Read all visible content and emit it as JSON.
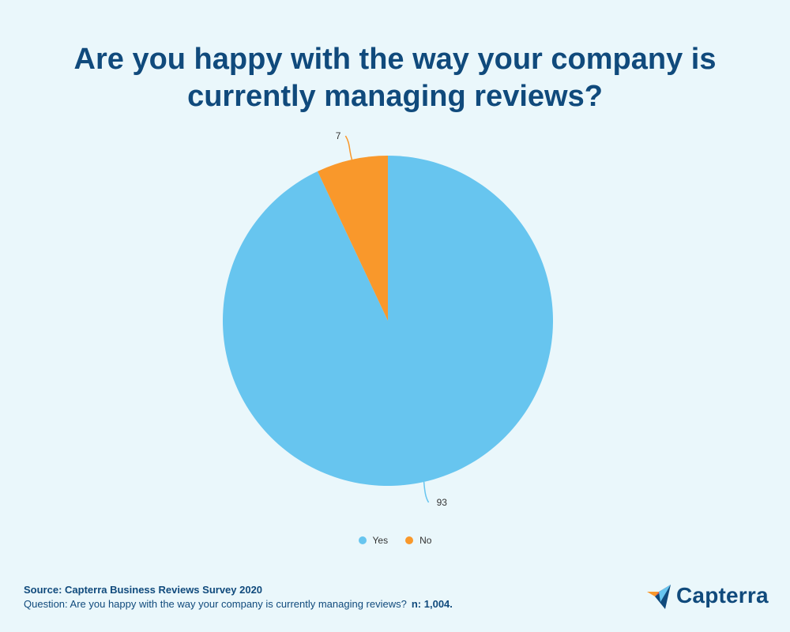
{
  "title": "Are you happy with the way your company is currently managing reviews?",
  "chart_data": {
    "type": "pie",
    "title": "Are you happy with the way your company is currently managing reviews?",
    "categories": [
      "Yes",
      "No"
    ],
    "values": [
      93,
      7
    ],
    "colors": [
      "#67c5ef",
      "#f9982b"
    ],
    "legend_position": "bottom-center"
  },
  "legend": {
    "items": [
      {
        "label": "Yes",
        "color": "#67c5ef"
      },
      {
        "label": "No",
        "color": "#f9982b"
      }
    ]
  },
  "footer": {
    "source": "Source: Capterra Business Reviews Survey 2020",
    "question": "Question: Are you happy with the way your company is currently managing reviews?",
    "n": "n: 1,004."
  },
  "logo": {
    "name": "Capterra",
    "colors": [
      "#f9982b",
      "#e8453c",
      "#104a7c",
      "#67c5ef"
    ]
  },
  "colors": {
    "background": "#eaf7fb",
    "title": "#104a7c"
  }
}
